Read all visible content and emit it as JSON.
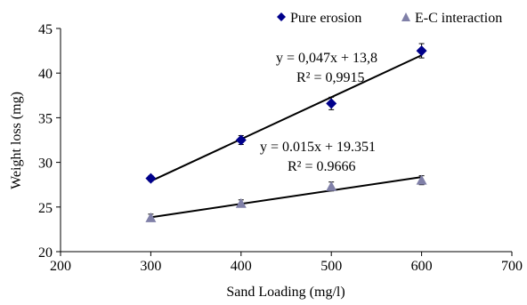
{
  "chart_data": {
    "type": "scatter",
    "xlabel": "Sand Loading (mg/l)",
    "ylabel": "Weight loss (mg)",
    "xlim": [
      200,
      700
    ],
    "ylim": [
      20,
      45
    ],
    "xticks": [
      200,
      300,
      400,
      500,
      600,
      700
    ],
    "yticks": [
      20,
      25,
      30,
      35,
      40,
      45
    ],
    "grid": false,
    "legend_position": "top-right",
    "series": [
      {
        "name": "Pure erosion",
        "marker": "diamond",
        "color": "#00008B",
        "x": [
          300,
          400,
          500,
          600
        ],
        "y": [
          28.2,
          32.5,
          36.6,
          42.5
        ],
        "error": [
          0.3,
          0.5,
          0.7,
          0.8
        ],
        "trendline": {
          "slope": 0.047,
          "intercept": 13.8
        },
        "equation": "y = 0,047x + 13,8",
        "r2": "R² = 0,9915"
      },
      {
        "name": "E-C interaction",
        "marker": "triangle",
        "color": "#8080A8",
        "x": [
          300,
          400,
          500,
          600
        ],
        "y": [
          23.8,
          25.4,
          27.3,
          28.0
        ],
        "error": [
          0.4,
          0.4,
          0.5,
          0.5
        ],
        "trendline": {
          "slope": 0.015,
          "intercept": 19.351
        },
        "equation": "y = 0.015x + 19.351",
        "r2": "R² = 0.9666"
      }
    ]
  }
}
